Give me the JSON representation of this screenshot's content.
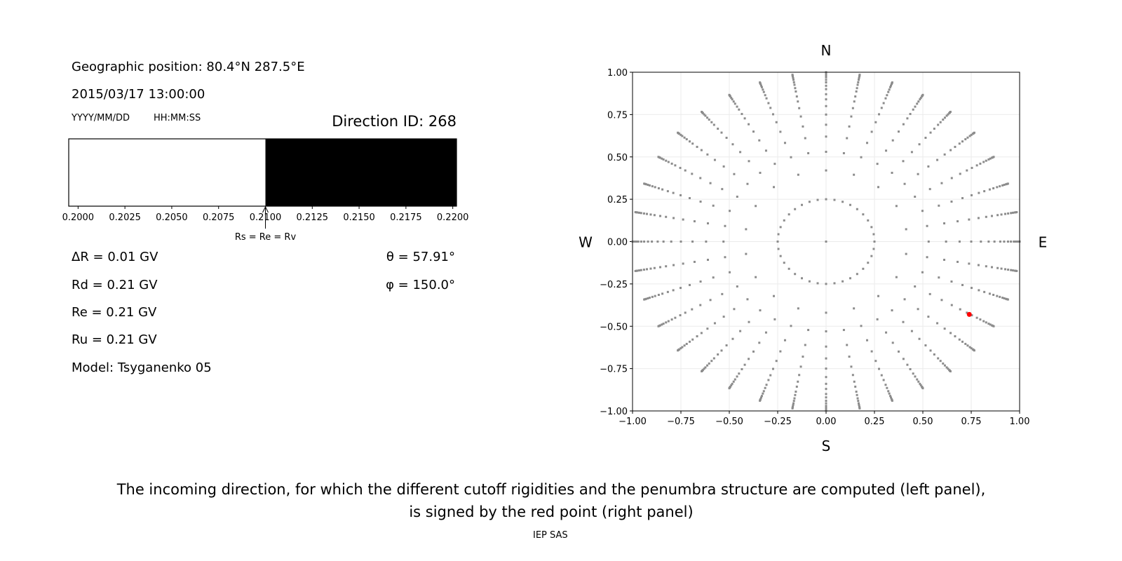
{
  "left_panel": {
    "geo_position": "Geographic position: 80.4°N 287.5°E",
    "datetime": "2015/03/17 13:00:00",
    "date_format": "YYYY/MM/DD",
    "time_format": "HH:MM:SS",
    "direction_id": "Direction ID: 268",
    "delta_r": "ΔR = 0.01 GV",
    "rd": "Rd = 0.21 GV",
    "re": "Re = 0.21 GV",
    "ru": "Ru = 0.21 GV",
    "model": "Model: Tsyganenko 05",
    "theta": "θ = 57.91°",
    "phi": "φ = 150.0°"
  },
  "chart_data": [
    {
      "type": "bar",
      "description_role": "penumbra",
      "xlim": [
        0.1995,
        0.2202
      ],
      "ticks": [
        "0.2000",
        "0.2025",
        "0.2050",
        "0.2075",
        "0.2100",
        "0.2125",
        "0.2150",
        "0.2175",
        "0.2200"
      ],
      "segments": [
        {
          "from": 0.1995,
          "to": 0.21,
          "color": "#ffffff"
        },
        {
          "from": 0.21,
          "to": 0.2202,
          "color": "#000000"
        }
      ],
      "annotation": {
        "text": "Rs = Re = Rv",
        "x": 0.21
      }
    },
    {
      "type": "scatter",
      "xlim": [
        -1,
        1
      ],
      "ylim": [
        -1,
        1
      ],
      "grid": true,
      "ticks": [
        "−1.00",
        "−0.75",
        "−0.50",
        "−0.25",
        "0.00",
        "0.25",
        "0.50",
        "0.75",
        "1.00"
      ],
      "compass": {
        "n": "N",
        "s": "S",
        "e": "E",
        "w": "W"
      },
      "point_color": "#8c8c8c",
      "center_point": [
        0,
        0
      ],
      "inner_ring": {
        "r": 0.25,
        "azimuth_step_deg": 10
      },
      "second_ring": {
        "r": 0.42,
        "azimuth_step_deg": 20
      },
      "rays": {
        "azimuth_step_deg": 10,
        "radii": [
          0.53,
          0.62,
          0.69,
          0.75,
          0.8,
          0.84,
          0.87,
          0.9,
          0.92,
          0.94,
          0.955,
          0.97,
          0.98,
          0.99,
          0.995,
          1.0
        ]
      },
      "selected_point": {
        "x": 0.74,
        "y": -0.43,
        "color": "#ff0000"
      }
    }
  ],
  "caption": {
    "line1": "The incoming direction, for which the different cutoff rigidities and the penumbra structure are computed (left panel),",
    "line2": "is signed by the red point (right panel)"
  },
  "footer": "IEP SAS"
}
